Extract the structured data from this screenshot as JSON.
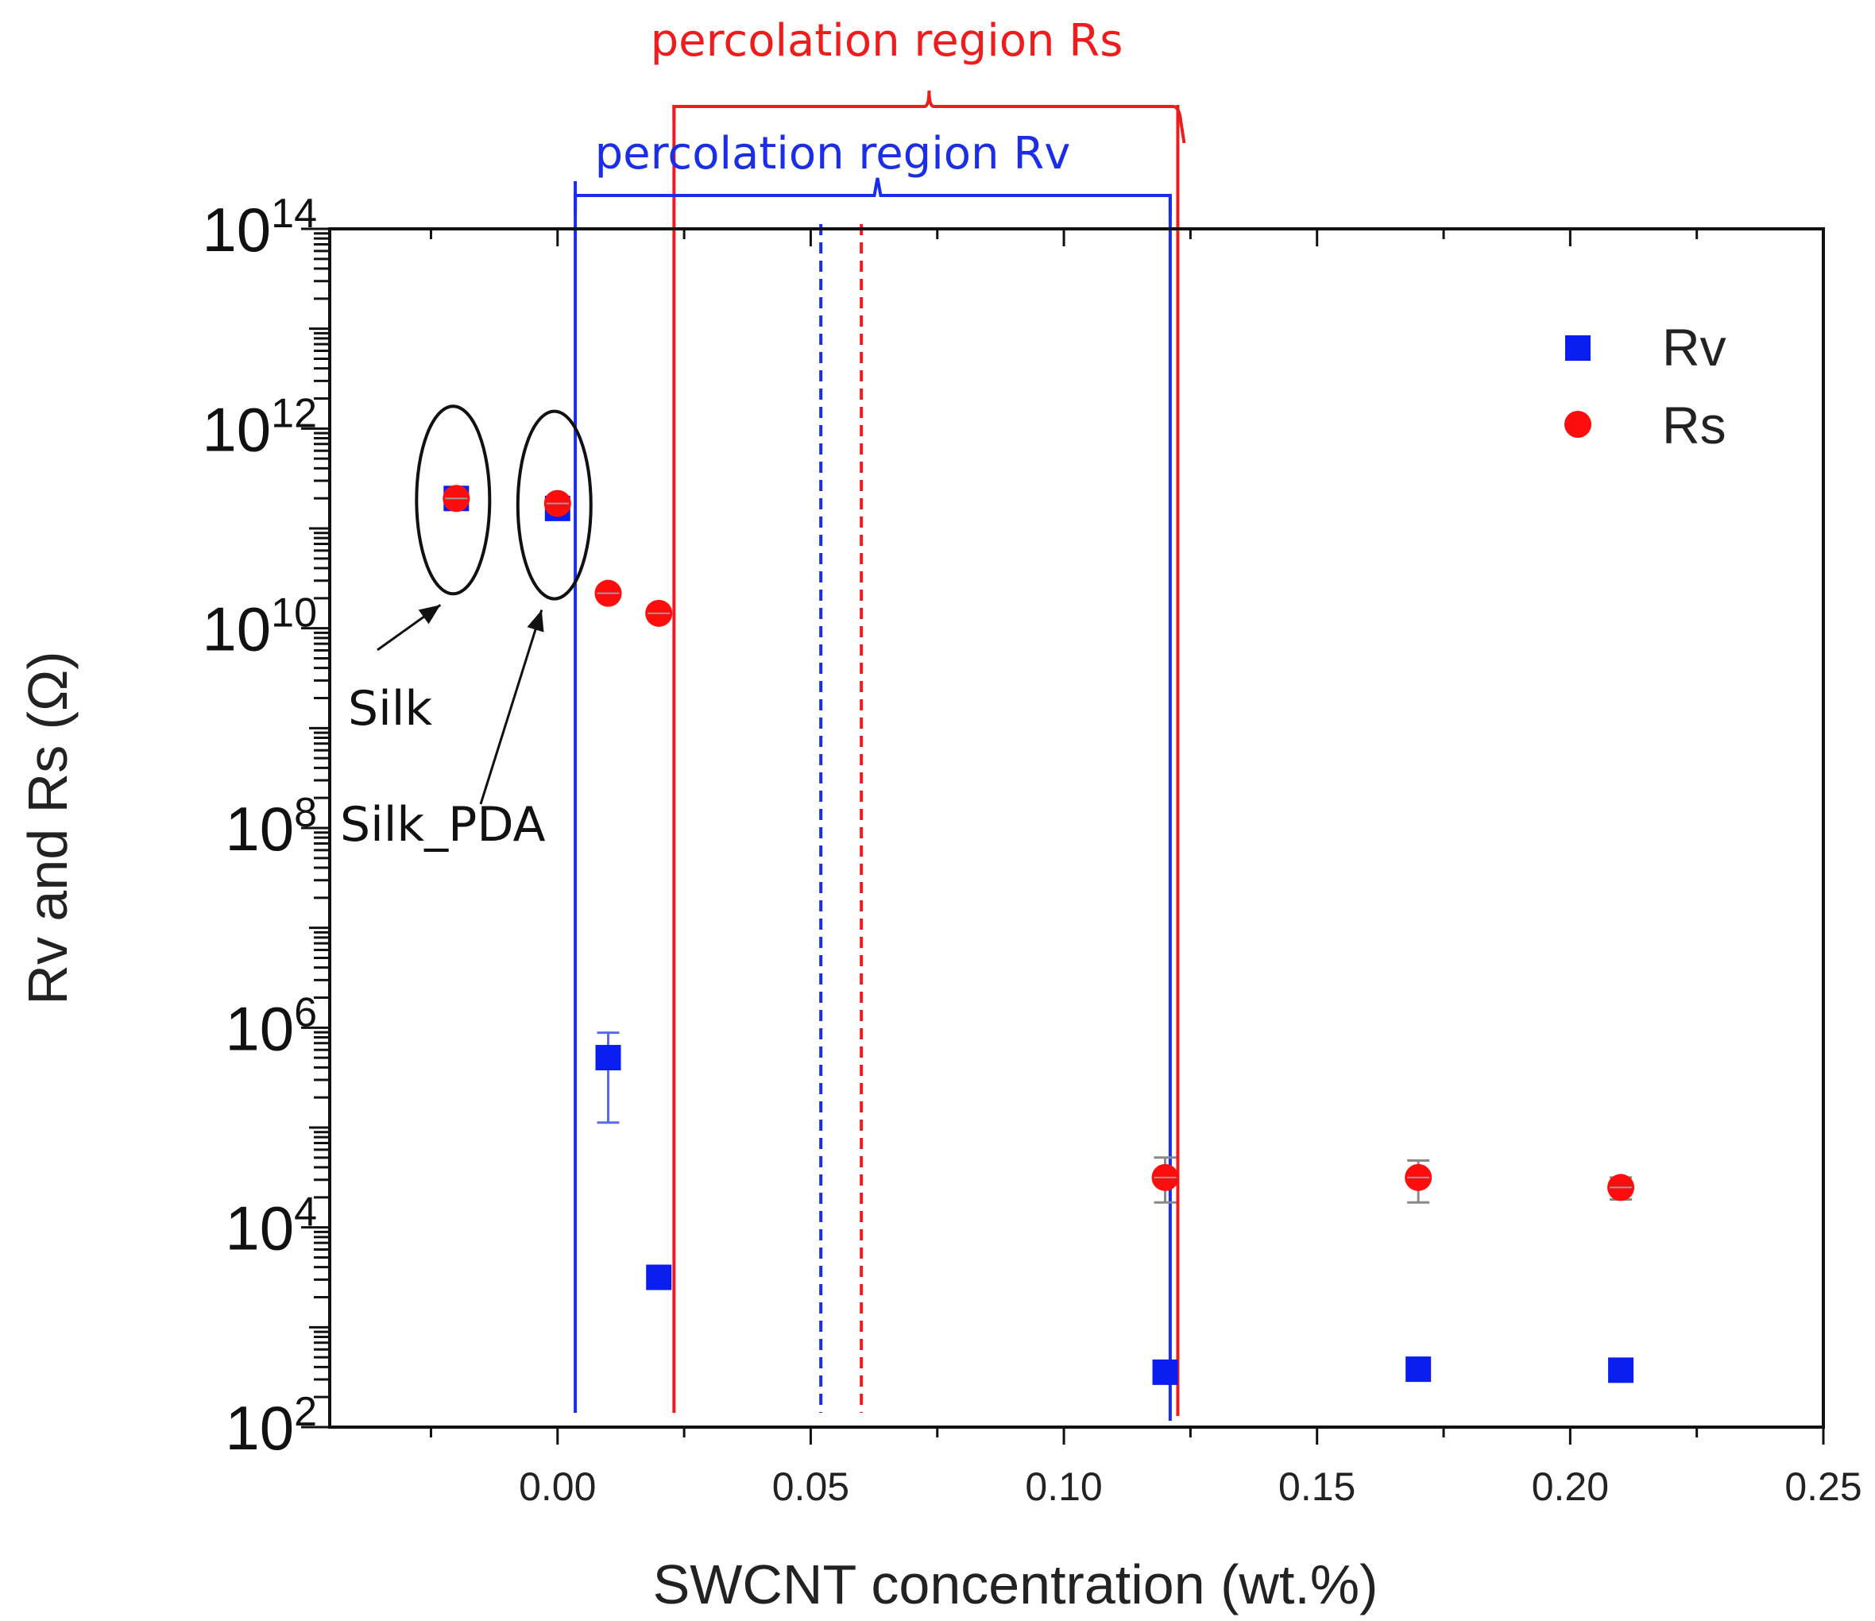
{
  "chart_data": {
    "type": "scatter",
    "title": "",
    "xlabel": "SWCNT concentration (wt.%)",
    "ylabel": "Rv and Rs (Ω)",
    "xlim": [
      -0.045,
      0.25
    ],
    "ylim_log10": [
      2,
      14
    ],
    "x_ticks": [
      "0.00",
      "0.05",
      "0.10",
      "0.15",
      "0.20",
      "0.25"
    ],
    "x_tick_values": [
      0,
      0.05,
      0.1,
      0.15,
      0.2,
      0.25
    ],
    "y_ticks": [
      {
        "base": "10",
        "exp": "2",
        "value": 2
      },
      {
        "base": "10",
        "exp": "4",
        "value": 4
      },
      {
        "base": "10",
        "exp": "6",
        "value": 6
      },
      {
        "base": "10",
        "exp": "8",
        "value": 8
      },
      {
        "base": "10",
        "exp": "10",
        "value": 10
      },
      {
        "base": "10",
        "exp": "12",
        "value": 12
      },
      {
        "base": "10",
        "exp": "14",
        "value": 14
      }
    ],
    "legend": {
      "position": "top-right",
      "entries": [
        "Rv",
        "Rs"
      ]
    },
    "series": [
      {
        "name": "Rv",
        "marker": "square",
        "color": "#0a1ef0",
        "points": [
          {
            "x": -0.02,
            "log10y": 11.3
          },
          {
            "x": 0.0,
            "log10y": 11.2
          },
          {
            "x": 0.01,
            "log10y": 5.7,
            "err_up_log10": 0.25,
            "err_down_log10": 0.65
          },
          {
            "x": 0.02,
            "log10y": 3.5
          },
          {
            "x": 0.12,
            "log10y": 2.55
          },
          {
            "x": 0.17,
            "log10y": 2.58
          },
          {
            "x": 0.21,
            "log10y": 2.57
          }
        ]
      },
      {
        "name": "Rs",
        "marker": "circle",
        "color": "#ff0d0d",
        "points": [
          {
            "x": -0.02,
            "log10y": 11.3
          },
          {
            "x": 0.0,
            "log10y": 11.25
          },
          {
            "x": 0.01,
            "log10y": 10.35
          },
          {
            "x": 0.02,
            "log10y": 10.15
          },
          {
            "x": 0.12,
            "log10y": 4.5,
            "err_up_log10": 0.2,
            "err_down_log10": 0.25
          },
          {
            "x": 0.17,
            "log10y": 4.5,
            "err_up_log10": 0.17,
            "err_down_log10": 0.25
          },
          {
            "x": 0.21,
            "log10y": 4.4,
            "err_up_log10": 0.1,
            "err_down_log10": 0.12
          }
        ]
      }
    ],
    "regions": [
      {
        "name": "percolation region Rv",
        "color": "#1a2ee8",
        "x_start": 0.0035,
        "x_end": 0.121,
        "threshold_x": 0.052
      },
      {
        "name": "percolation region Rs",
        "color": "#ee1c1c",
        "x_start": 0.023,
        "x_end": 0.1225,
        "threshold_x": 0.06
      }
    ],
    "annotations": [
      {
        "text": "Silk",
        "x": -0.02,
        "log10y": 11.3
      },
      {
        "text": "Silk_PDA",
        "x": 0.0,
        "log10y": 11.25
      }
    ]
  }
}
